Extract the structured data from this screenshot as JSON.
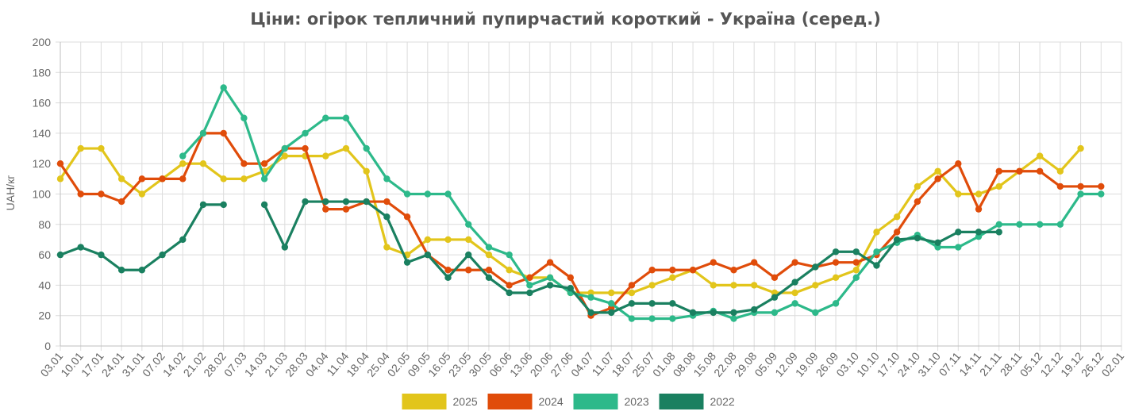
{
  "chart_data": {
    "type": "line",
    "title": "Ціни: огірок тепличний пупирчастий короткий - Україна (серед.)",
    "ylabel": "UAH/кг",
    "xlabel": "",
    "ylim": [
      0,
      200
    ],
    "yticks": [
      0,
      20,
      40,
      60,
      80,
      100,
      120,
      140,
      160,
      180,
      200
    ],
    "grid": true,
    "legend_position": "bottom",
    "categories": [
      "03.01",
      "10.01",
      "17.01",
      "24.01",
      "31.01",
      "07.02",
      "14.02",
      "21.02",
      "28.02",
      "07.03",
      "14.03",
      "21.03",
      "28.03",
      "04.04",
      "11.04",
      "18.04",
      "25.04",
      "02.05",
      "09.05",
      "16.05",
      "23.05",
      "30.05",
      "06.06",
      "13.06",
      "20.06",
      "27.06",
      "04.07",
      "11.07",
      "18.07",
      "25.07",
      "01.08",
      "08.08",
      "15.08",
      "22.08",
      "29.08",
      "05.09",
      "12.09",
      "19.09",
      "26.09",
      "03.10",
      "10.10",
      "17.10",
      "24.10",
      "31.10",
      "07.11",
      "14.11",
      "21.11",
      "28.11",
      "05.12",
      "12.12",
      "19.12",
      "26.12",
      "02.01"
    ],
    "series": [
      {
        "name": "2025",
        "color": "#e2c51b",
        "values": [
          110,
          130,
          130,
          110,
          100,
          110,
          120,
          120,
          110,
          110,
          115,
          125,
          125,
          125,
          130,
          115,
          65,
          60,
          70,
          70,
          70,
          60,
          50,
          45,
          45,
          35,
          35,
          35,
          35,
          40,
          45,
          50,
          40,
          40,
          40,
          35,
          35,
          40,
          45,
          50,
          75,
          85,
          105,
          115,
          100,
          100,
          105,
          115,
          125,
          115,
          130,
          null,
          null
        ]
      },
      {
        "name": "2024",
        "color": "#e04c0a",
        "values": [
          120,
          100,
          100,
          95,
          110,
          110,
          110,
          140,
          140,
          120,
          120,
          130,
          130,
          90,
          90,
          95,
          95,
          85,
          60,
          50,
          50,
          50,
          40,
          45,
          55,
          45,
          20,
          25,
          40,
          50,
          50,
          50,
          55,
          50,
          55,
          45,
          55,
          52,
          55,
          55,
          60,
          75,
          95,
          110,
          120,
          90,
          115,
          115,
          115,
          105,
          105,
          105,
          null
        ]
      },
      {
        "name": "2023",
        "color": "#2db98a",
        "values": [
          null,
          null,
          null,
          null,
          null,
          null,
          125,
          140,
          170,
          150,
          110,
          130,
          140,
          150,
          150,
          130,
          110,
          100,
          100,
          100,
          80,
          65,
          60,
          40,
          45,
          35,
          32,
          28,
          18,
          18,
          18,
          20,
          23,
          18,
          22,
          22,
          28,
          22,
          28,
          45,
          62,
          68,
          73,
          65,
          65,
          72,
          80,
          80,
          80,
          80,
          100,
          100,
          null
        ]
      },
      {
        "name": "2022",
        "color": "#1a8060",
        "values": [
          60,
          65,
          60,
          50,
          50,
          60,
          70,
          93,
          93,
          null,
          93,
          65,
          95,
          95,
          95,
          95,
          85,
          55,
          60,
          45,
          60,
          45,
          35,
          35,
          40,
          38,
          22,
          22,
          28,
          28,
          28,
          22,
          22,
          22,
          24,
          32,
          42,
          52,
          62,
          62,
          53,
          70,
          71,
          68,
          75,
          75,
          75,
          null,
          null,
          null,
          null,
          null,
          null
        ]
      }
    ]
  }
}
